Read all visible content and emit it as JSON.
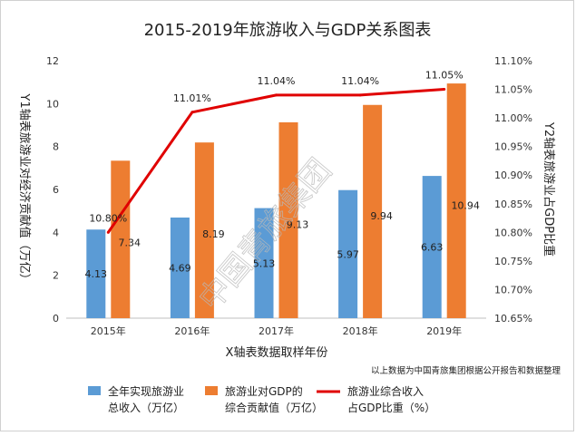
{
  "chart_data": {
    "type": "bar",
    "title": "2015-2019年旅游收入与GDP关系图表",
    "xlabel": "X轴表数据取样年份",
    "ylabel": "Y1轴表旅游业对经济贡献值（万亿）",
    "y2label": "Y2轴表旅游业占GDP比重",
    "categories": [
      "2015年",
      "2016年",
      "2017年",
      "2018年",
      "2019年"
    ],
    "ylim": [
      0,
      12
    ],
    "yticks": [
      0,
      2,
      4,
      6,
      8,
      10,
      12
    ],
    "y2lim": [
      10.65,
      11.1
    ],
    "y2ticks": [
      "10.65%",
      "10.70%",
      "10.75%",
      "10.80%",
      "10.85%",
      "10.90%",
      "10.95%",
      "11.00%",
      "11.05%",
      "11.10%"
    ],
    "grid": false,
    "legend_position": "bottom",
    "series": [
      {
        "name": "全年实现旅游业总收入（万亿）",
        "legend_lines": [
          "全年实现旅游业",
          "总收入（万亿）"
        ],
        "type": "bar",
        "axis": "y1",
        "color": "#5B9BD5",
        "values": [
          4.13,
          4.69,
          5.13,
          5.97,
          6.63
        ],
        "labels": [
          "4.13",
          "4.69",
          "5.13",
          "5.97",
          "6.63"
        ]
      },
      {
        "name": "旅游业对GDP的综合贡献值（万亿）",
        "legend_lines": [
          "旅游业对GDP的",
          "综合贡献值（万亿）"
        ],
        "type": "bar",
        "axis": "y1",
        "color": "#ED7D31",
        "values": [
          7.34,
          8.19,
          9.13,
          9.94,
          10.94
        ],
        "labels": [
          "7.34",
          "8.19",
          "9.13",
          "9.94",
          "10.94"
        ]
      },
      {
        "name": "旅游业综合收入占GDP比重（%）",
        "legend_lines": [
          "旅游业综合收入",
          "占GDP比重（%）"
        ],
        "type": "line",
        "axis": "y2",
        "color": "#E00000",
        "values": [
          10.8,
          11.01,
          11.04,
          11.04,
          11.05
        ],
        "labels": [
          "10.80%",
          "11.01%",
          "11.04%",
          "11.04%",
          "11.05%"
        ]
      }
    ],
    "annotation": "以上数据为中国青旅集团根据公开报告和数据整理",
    "watermark": "中国青旅集团"
  }
}
